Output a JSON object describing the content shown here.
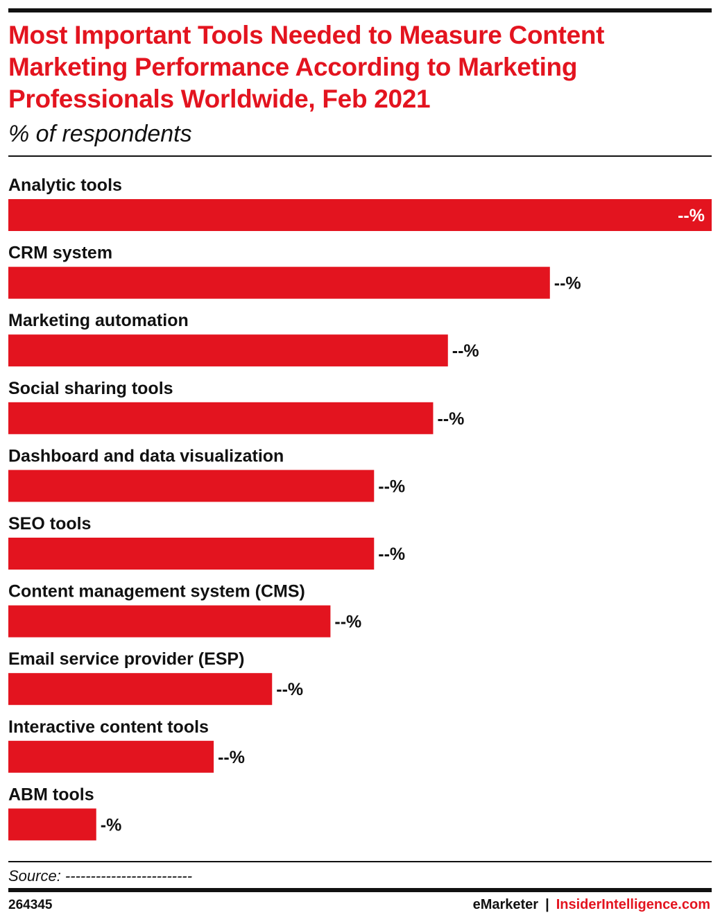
{
  "header": {
    "title": "Most Important Tools Needed to Measure Content Marketing Performance According to Marketing Professionals Worldwide, Feb 2021",
    "subtitle": "% of respondents"
  },
  "chart_data": {
    "type": "bar",
    "orientation": "horizontal",
    "categories": [
      "Analytic tools",
      "CRM system",
      "Marketing automation",
      "Social sharing tools",
      "Dashboard and data visualization",
      "SEO tools",
      "Content management system (CMS)",
      "Email service provider (ESP)",
      "Interactive content tools",
      "ABM tools"
    ],
    "values": [
      100,
      77,
      62.5,
      60.4,
      52,
      52,
      45.8,
      37.5,
      29.2,
      12.5
    ],
    "value_labels": [
      "--%",
      "--%",
      "--%",
      "--%",
      "--%",
      "--%",
      "--%",
      "--%",
      "--%",
      "-%"
    ],
    "xlim": [
      0,
      100
    ],
    "grid": false,
    "legend": "none",
    "bar_color": "#e3141f"
  },
  "footer": {
    "source": "Source: -------------------------",
    "chart_id": "264345",
    "brand_primary": "eMarketer",
    "brand_separator": "|",
    "brand_secondary": "InsiderIntelligence.com"
  }
}
